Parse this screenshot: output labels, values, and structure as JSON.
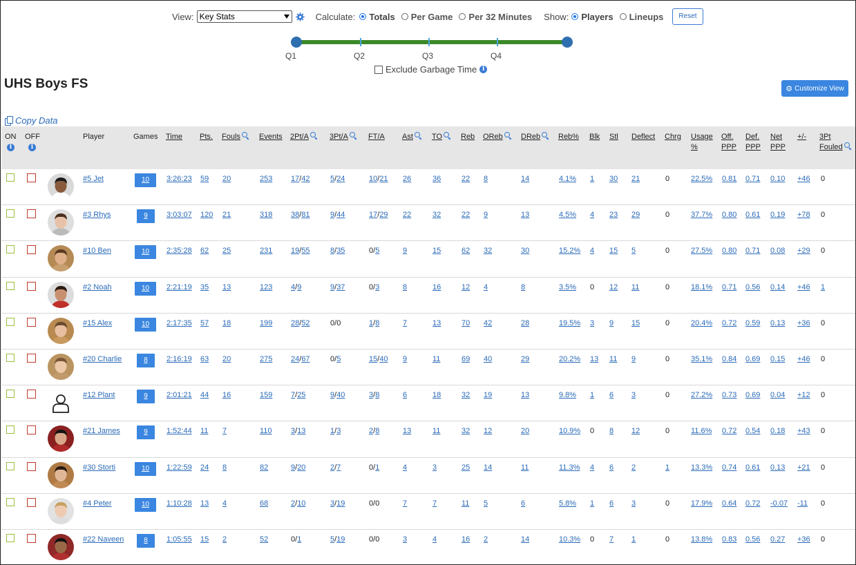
{
  "controls": {
    "view_label": "View:",
    "view_value": "Key Stats",
    "calc_label": "Calculate:",
    "calc_options": [
      "Totals",
      "Per Game",
      "Per 32 Minutes"
    ],
    "calc_selected": 0,
    "show_label": "Show:",
    "show_options": [
      "Players",
      "Lineups"
    ],
    "show_selected": 0,
    "reset_label": "Reset"
  },
  "slider": {
    "labels": [
      "Q1",
      "Q2",
      "Q3",
      "Q4"
    ],
    "range_start": "Q1",
    "range_end": "end"
  },
  "garbage_label": "Exclude Garbage Time",
  "team_title": "UHS Boys FS",
  "customize_label": "Customize View",
  "copy_label": "Copy Data",
  "colors": {
    "accent": "#3a86e0",
    "slider_track": "#3b8a2a",
    "on_box": "#9bbf3b",
    "off_box": "#c0392b"
  },
  "headers": {
    "on": "ON",
    "off": "OFF",
    "player": "Player",
    "games": "Games",
    "time": "Time",
    "pts": "Pts.",
    "fouls": "Fouls",
    "events": "Events",
    "two": "2Pt/A",
    "three": "3Pt/A",
    "ft": "FT/A",
    "ast": "Ast",
    "to": "TO",
    "reb": "Reb",
    "oreb": "OReb",
    "dreb": "DReb",
    "rebpct": "Reb%",
    "blk": "Blk",
    "stl": "Stl",
    "deflect": "Deflect",
    "chrg": "Chrg",
    "usage1": "Usage",
    "usage2": "%",
    "offppp1": "Off.",
    "offppp2": "PPP",
    "defppp1": "Def.",
    "defppp2": "PPP",
    "netppp1": "Net",
    "netppp2": "PPP",
    "pm": "+/-",
    "fouled1": "3Pt",
    "fouled2": "Fouled"
  },
  "rows": [
    {
      "player": "#5 Jet",
      "games": "10",
      "time": "3:26:23",
      "pts": "59",
      "fouls": "20",
      "events": "253",
      "two_m": "17",
      "two_a": "42",
      "three_m": "5",
      "three_a": "24",
      "ft_m": "10",
      "ft_a": "21",
      "ast": "26",
      "to": "36",
      "reb": "22",
      "oreb": "8",
      "dreb": "14",
      "rebpct": "4.1%",
      "blk": "1",
      "stl": "30",
      "deflect": "21",
      "chrg": "0",
      "usage": "22.5%",
      "offppp": "0.81",
      "defppp": "0.71",
      "netppp": "0.10",
      "pm": "+46",
      "fouled": "0",
      "skin": "#8a5a3c",
      "hair": "#1a1a1a",
      "shirt": "#ffffff",
      "bg": "#d9d9d9"
    },
    {
      "player": "#3 Rhys",
      "games": "9",
      "time": "3:03:07",
      "pts": "120",
      "fouls": "21",
      "events": "318",
      "two_m": "38",
      "two_a": "81",
      "three_m": "9",
      "three_a": "44",
      "ft_m": "17",
      "ft_a": "29",
      "ast": "22",
      "to": "32",
      "reb": "22",
      "oreb": "9",
      "dreb": "13",
      "rebpct": "4.5%",
      "blk": "4",
      "stl": "23",
      "deflect": "29",
      "chrg": "0",
      "usage": "37.7%",
      "offppp": "0.80",
      "defppp": "0.61",
      "netppp": "0.19",
      "pm": "+78",
      "fouled": "0",
      "skin": "#e8c2a8",
      "hair": "#4a3020",
      "shirt": "#bbbbbb",
      "bg": "#dedede"
    },
    {
      "player": "#10 Ben",
      "games": "10",
      "time": "2:35:28",
      "pts": "62",
      "fouls": "25",
      "events": "231",
      "two_m": "19",
      "two_a": "55",
      "three_m": "8",
      "three_a": "35",
      "ft_m": "0",
      "ft_a": "5",
      "ast": "9",
      "to": "15",
      "reb": "62",
      "oreb": "32",
      "dreb": "30",
      "rebpct": "15.2%",
      "blk": "4",
      "stl": "15",
      "deflect": "5",
      "chrg": "0",
      "usage": "27.5%",
      "offppp": "0.80",
      "defppp": "0.71",
      "netppp": "0.08",
      "pm": "+29",
      "fouled": "0",
      "skin": "#e0b08a",
      "hair": "#5a3a20",
      "shirt": "#c8a070",
      "bg": "#b58a55"
    },
    {
      "player": "#2 Noah",
      "games": "10",
      "time": "2:21:19",
      "pts": "35",
      "fouls": "13",
      "events": "123",
      "two_m": "4",
      "two_a": "9",
      "three_m": "9",
      "three_a": "37",
      "ft_m": "0",
      "ft_a": "3",
      "ast": "8",
      "to": "16",
      "reb": "12",
      "oreb": "4",
      "dreb": "8",
      "rebpct": "3.5%",
      "blk": "0",
      "stl": "12",
      "deflect": "11",
      "chrg": "0",
      "usage": "18.1%",
      "offppp": "0.71",
      "defppp": "0.56",
      "netppp": "0.14",
      "pm": "+46",
      "fouled": "1",
      "skin": "#c89070",
      "hair": "#2a1a10",
      "shirt": "#c0302a",
      "bg": "#dcdcdc"
    },
    {
      "player": "#15 Alex",
      "games": "10",
      "time": "2:17:35",
      "pts": "57",
      "fouls": "18",
      "events": "199",
      "two_m": "28",
      "two_a": "52",
      "three_m": "0",
      "three_a": "0",
      "ft_m": "1",
      "ft_a": "8",
      "ast": "7",
      "to": "13",
      "reb": "70",
      "oreb": "42",
      "dreb": "28",
      "rebpct": "19.5%",
      "blk": "3",
      "stl": "9",
      "deflect": "15",
      "chrg": "0",
      "usage": "20.4%",
      "offppp": "0.72",
      "defppp": "0.59",
      "netppp": "0.13",
      "pm": "+36",
      "fouled": "0",
      "skin": "#e8bfa0",
      "hair": "#6a4a30",
      "shirt": "#c89a60",
      "bg": "#b88a50"
    },
    {
      "player": "#20 Charlie",
      "games": "8",
      "time": "2:16:19",
      "pts": "63",
      "fouls": "20",
      "events": "275",
      "two_m": "24",
      "two_a": "67",
      "three_m": "0",
      "three_a": "5",
      "ft_m": "15",
      "ft_a": "40",
      "ast": "9",
      "to": "11",
      "reb": "69",
      "oreb": "40",
      "dreb": "29",
      "rebpct": "20.2%",
      "blk": "13",
      "stl": "11",
      "deflect": "9",
      "chrg": "0",
      "usage": "35.1%",
      "offppp": "0.84",
      "defppp": "0.69",
      "netppp": "0.15",
      "pm": "+46",
      "fouled": "0",
      "skin": "#ecc8a8",
      "hair": "#7a5535",
      "shirt": "#c09a6a",
      "bg": "#ba9460"
    },
    {
      "player": "#12 Plant",
      "games": "9",
      "time": "2:01:21",
      "pts": "44",
      "fouls": "16",
      "events": "159",
      "two_m": "7",
      "two_a": "25",
      "three_m": "9",
      "three_a": "40",
      "ft_m": "3",
      "ft_a": "8",
      "ast": "6",
      "to": "18",
      "reb": "32",
      "oreb": "19",
      "dreb": "13",
      "rebpct": "9.8%",
      "blk": "1",
      "stl": "6",
      "deflect": "3",
      "chrg": "0",
      "usage": "27.2%",
      "offppp": "0.73",
      "defppp": "0.69",
      "netppp": "0.04",
      "pm": "+12",
      "fouled": "0",
      "placeholder": true
    },
    {
      "player": "#21 James",
      "games": "9",
      "time": "1:52:44",
      "pts": "11",
      "fouls": "7",
      "events": "110",
      "two_m": "3",
      "two_a": "13",
      "three_m": "1",
      "three_a": "3",
      "ft_m": "2",
      "ft_a": "8",
      "ast": "13",
      "to": "11",
      "reb": "32",
      "oreb": "12",
      "dreb": "20",
      "rebpct": "10.9%",
      "blk": "0",
      "stl": "8",
      "deflect": "12",
      "chrg": "0",
      "usage": "11.6%",
      "offppp": "0.72",
      "defppp": "0.54",
      "netppp": "0.18",
      "pm": "+43",
      "fouled": "0",
      "skin": "#d8a888",
      "hair": "#151515",
      "shirt": "#b02a2a",
      "bg": "#8a2020"
    },
    {
      "player": "#30 Storti",
      "games": "10",
      "time": "1:22:59",
      "pts": "24",
      "fouls": "8",
      "events": "82",
      "two_m": "9",
      "two_a": "20",
      "three_m": "2",
      "three_a": "7",
      "ft_m": "0",
      "ft_a": "1",
      "ast": "4",
      "to": "3",
      "reb": "25",
      "oreb": "14",
      "dreb": "11",
      "rebpct": "11.3%",
      "blk": "4",
      "stl": "6",
      "deflect": "2",
      "chrg": "1",
      "usage": "13.3%",
      "offppp": "0.74",
      "defppp": "0.61",
      "netppp": "0.13",
      "pm": "+21",
      "fouled": "0",
      "skin": "#e0b898",
      "hair": "#2a1a10",
      "shirt": "#c08a55",
      "bg": "#b07a45"
    },
    {
      "player": "#4 Peter",
      "games": "10",
      "time": "1:10:28",
      "pts": "13",
      "fouls": "4",
      "events": "68",
      "two_m": "2",
      "two_a": "10",
      "three_m": "3",
      "three_a": "19",
      "ft_m": "0",
      "ft_a": "0",
      "ast": "7",
      "to": "7",
      "reb": "11",
      "oreb": "5",
      "dreb": "6",
      "rebpct": "5.8%",
      "blk": "1",
      "stl": "6",
      "deflect": "3",
      "chrg": "0",
      "usage": "17.9%",
      "offppp": "0.64",
      "defppp": "0.72",
      "netppp": "-0.07",
      "pm": "-11",
      "fouled": "0",
      "skin": "#eecbb0",
      "hair": "#c8a060",
      "shirt": "#dddddd",
      "bg": "#e2e2e2"
    },
    {
      "player": "#22 Naveen",
      "games": "8",
      "time": "1:05:55",
      "pts": "15",
      "fouls": "2",
      "events": "52",
      "two_m": "0",
      "two_a": "1",
      "three_m": "5",
      "three_a": "19",
      "ft_m": "0",
      "ft_a": "0",
      "ast": "3",
      "to": "4",
      "reb": "16",
      "oreb": "2",
      "dreb": "14",
      "rebpct": "10.3%",
      "blk": "0",
      "stl": "7",
      "deflect": "1",
      "chrg": "0",
      "usage": "13.8%",
      "offppp": "0.83",
      "defppp": "0.56",
      "netppp": "0.27",
      "pm": "+36",
      "fouled": "0",
      "skin": "#9a6a48",
      "hair": "#121212",
      "shirt": "#b03030",
      "bg": "#902828"
    }
  ],
  "links": {
    "pts": true,
    "fouls": true,
    "events": true,
    "ast": true,
    "to": true,
    "reb": true,
    "oreb": true,
    "dreb": true,
    "rebpct": true,
    "stl": true,
    "deflect": true,
    "usage": true,
    "offppp": true,
    "defppp": true,
    "netppp": true,
    "pm": true
  }
}
